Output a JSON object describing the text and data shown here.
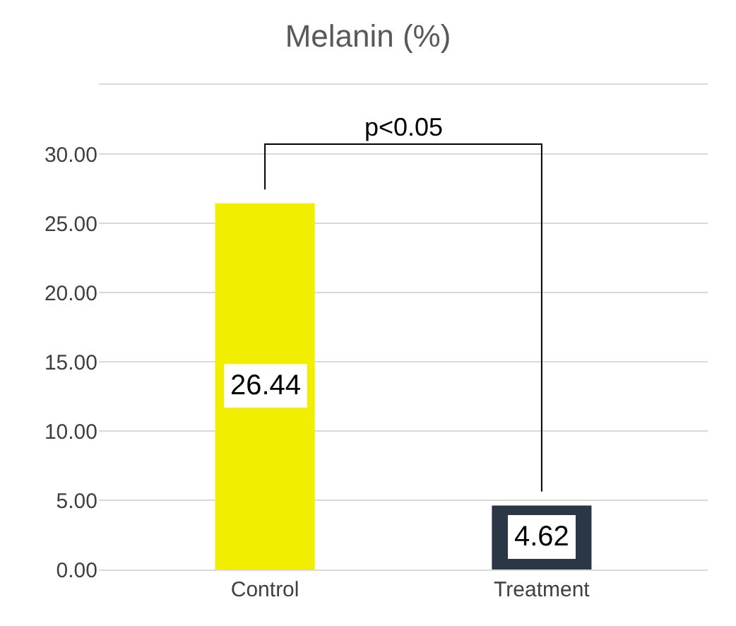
{
  "chart_data": {
    "type": "bar",
    "title": "Melanin (%)",
    "categories": [
      "Control",
      "Treatment"
    ],
    "values": [
      26.44,
      4.62
    ],
    "colors": [
      "#f2ee00",
      "#2b3646"
    ],
    "ylim": [
      0,
      35
    ],
    "yticks": [
      {
        "value": 0,
        "label": "0.00"
      },
      {
        "value": 5,
        "label": "5.00"
      },
      {
        "value": 10,
        "label": "10.00"
      },
      {
        "value": 15,
        "label": "15.00"
      },
      {
        "value": 20,
        "label": "20.00"
      },
      {
        "value": 25,
        "label": "25.00"
      },
      {
        "value": 30,
        "label": "30.00"
      },
      {
        "value": 35,
        "label": null
      }
    ],
    "grid": "y",
    "data_labels": true,
    "annotations": [
      "p<0.05"
    ]
  }
}
